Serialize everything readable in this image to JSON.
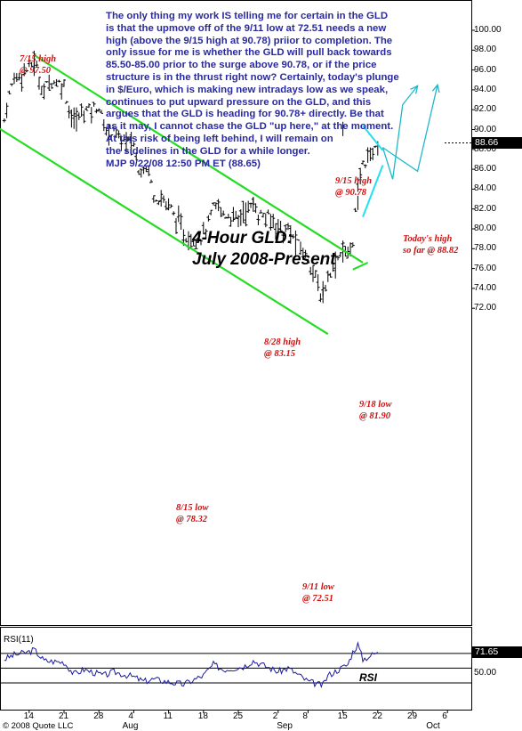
{
  "commentary": [
    "The only thing my work IS telling me for certain in the GLD",
    "is that the upmove off of the 9/11 low at 72.51 needs a new",
    "high (above the 9/15 high at 90.78) priior to completion. The",
    "only issue for me is whether the GLD will pull back towards",
    "85.50-85.00 prior to the surge above 90.78, or if the price",
    "structure is in the thrust right now?  Certainly, today's plunge",
    "in $/Euro, which is making new intradays low as we speak,",
    "continues to put upward pressure on the GLD, and this",
    "argues that the GLD is heading for 90.78+ directly. Be that",
    "as it may, I cannot chase the GLD \"up here,\" at the moment.",
    "At this risk of being left behind, I will remain on",
    "the sidelines in the GLD for a while longer.",
    "MJP 9/22/08   12:50 PM ET    (88.65)"
  ],
  "title_lines": [
    "4-Hour GLD:",
    "July 2008-Present"
  ],
  "annotations": {
    "jul15_high": [
      "7/15 high",
      "@ 97.50"
    ],
    "aug15_low": [
      "8/15 low",
      "@ 78.32"
    ],
    "aug28_high": [
      "8/28 high",
      "@ 83.15"
    ],
    "sep11_low": [
      "9/11 low",
      "@ 72.51"
    ],
    "sep15_high": [
      "9/15 high",
      "@ 90.78"
    ],
    "sep18_low": [
      "9/18 low",
      "@ 81.90"
    ],
    "today_high": [
      "Today's high",
      "so far @ 88.82"
    ]
  },
  "last_price": "88.66",
  "rsi_label": "RSI(11)",
  "rsi_value": "71.65",
  "rsi_tag": "RSI",
  "copyright": "© 2008 Quote LLC",
  "colors": {
    "commentary": "#2a2aa0",
    "annotation": "#cc1111",
    "channel": "#22dd22",
    "projection": "#20b8c8",
    "triangle": "#22e0f0",
    "bars": "#000000",
    "rsi_line": "#1a1aa0"
  },
  "chart_data": {
    "type": "bar",
    "subtype": "ohlc",
    "title": "4-Hour GLD: July 2008-Present",
    "timeframe": "4-hour",
    "y_ticks": [
      72,
      74,
      76,
      78,
      80,
      82,
      84,
      86,
      88,
      90,
      92,
      94,
      96,
      98,
      100
    ],
    "ylim": [
      69.5,
      101.5
    ],
    "x_ticks": [
      "14",
      "21",
      "28",
      "4",
      "11",
      "18",
      "25",
      "2",
      "8",
      "15",
      "22",
      "29",
      "6"
    ],
    "x_months": [
      "Aug",
      "Sep",
      "Oct"
    ],
    "x_tick_dates": [
      "2008-07-14",
      "2008-07-21",
      "2008-07-28",
      "2008-08-04",
      "2008-08-11",
      "2008-08-18",
      "2008-08-25",
      "2008-09-02",
      "2008-09-08",
      "2008-09-15",
      "2008-09-22",
      "2008-09-29",
      "2008-10-06"
    ],
    "x_month_dates": [
      "2008-08-01",
      "2008-09-01",
      "2008-10-01"
    ],
    "key_points": [
      {
        "date": "2008-07-15",
        "value": 97.5,
        "label": "7/15 high"
      },
      {
        "date": "2008-08-15",
        "value": 78.32,
        "label": "8/15 low"
      },
      {
        "date": "2008-08-28",
        "value": 83.15,
        "label": "8/28 high"
      },
      {
        "date": "2008-09-11",
        "value": 72.51,
        "label": "9/11 low"
      },
      {
        "date": "2008-09-15",
        "value": 90.78,
        "label": "9/15 high"
      },
      {
        "date": "2008-09-18",
        "value": 81.9,
        "label": "9/18 low"
      },
      {
        "date": "2008-09-22",
        "value": 88.82,
        "label": "Today's high"
      }
    ],
    "close_path": [
      [
        "2008-07-09",
        91.0
      ],
      [
        "2008-07-10",
        93.5
      ],
      [
        "2008-07-11",
        95.2
      ],
      [
        "2008-07-14",
        96.2
      ],
      [
        "2008-07-15",
        97.0
      ],
      [
        "2008-07-16",
        95.0
      ],
      [
        "2008-07-17",
        93.8
      ],
      [
        "2008-07-18",
        95.0
      ],
      [
        "2008-07-21",
        94.5
      ],
      [
        "2008-07-22",
        92.0
      ],
      [
        "2008-07-23",
        90.8
      ],
      [
        "2008-07-24",
        91.3
      ],
      [
        "2008-07-25",
        92.0
      ],
      [
        "2008-07-28",
        92.3
      ],
      [
        "2008-07-29",
        90.3
      ],
      [
        "2008-07-30",
        89.5
      ],
      [
        "2008-07-31",
        90.2
      ],
      [
        "2008-08-01",
        89.0
      ],
      [
        "2008-08-04",
        88.5
      ],
      [
        "2008-08-05",
        86.0
      ],
      [
        "2008-08-06",
        86.3
      ],
      [
        "2008-08-07",
        86.0
      ],
      [
        "2008-08-08",
        83.5
      ],
      [
        "2008-08-11",
        82.5
      ],
      [
        "2008-08-12",
        81.5
      ],
      [
        "2008-08-13",
        80.5
      ],
      [
        "2008-08-14",
        79.5
      ],
      [
        "2008-08-15",
        78.8
      ],
      [
        "2008-08-18",
        79.5
      ],
      [
        "2008-08-19",
        80.5
      ],
      [
        "2008-08-20",
        82.0
      ],
      [
        "2008-08-21",
        82.3
      ],
      [
        "2008-08-22",
        81.5
      ],
      [
        "2008-08-25",
        81.0
      ],
      [
        "2008-08-26",
        81.8
      ],
      [
        "2008-08-27",
        82.0
      ],
      [
        "2008-08-28",
        82.5
      ],
      [
        "2008-08-29",
        81.5
      ],
      [
        "2008-09-02",
        80.5
      ],
      [
        "2008-09-03",
        79.5
      ],
      [
        "2008-09-04",
        80.0
      ],
      [
        "2008-09-05",
        79.0
      ],
      [
        "2008-09-08",
        77.0
      ],
      [
        "2008-09-09",
        76.0
      ],
      [
        "2008-09-10",
        74.0
      ],
      [
        "2008-09-11",
        73.2
      ],
      [
        "2008-09-12",
        75.5
      ],
      [
        "2008-09-15",
        78.0
      ],
      [
        "2008-09-16",
        77.2
      ],
      [
        "2008-09-17",
        79.0
      ],
      [
        "2008-09-18",
        84.0
      ],
      [
        "2008-09-19",
        86.5
      ],
      [
        "2008-09-22",
        88.66
      ]
    ],
    "last": 88.66,
    "overlays": [
      {
        "type": "channel-upper",
        "from": [
          "2008-07-15",
          97.5
        ],
        "to": [
          "2008-09-19",
          76.6
        ]
      },
      {
        "type": "channel-lower",
        "from": [
          "2008-07-08",
          90.1
        ],
        "to": [
          "2008-09-12",
          69.4
        ]
      },
      {
        "type": "triangle-upper",
        "from": [
          "2008-09-19",
          90.4
        ],
        "to": [
          "2008-09-23",
          87.9
        ]
      },
      {
        "type": "triangle-lower",
        "from": [
          "2008-09-19",
          81.2
        ],
        "to": [
          "2008-09-23",
          86.4
        ]
      }
    ],
    "rsi": {
      "period": 11,
      "levels": [
        70,
        50,
        30
      ],
      "last": 71.65,
      "values": [
        [
          "2008-07-09",
          62
        ],
        [
          "2008-07-11",
          68
        ],
        [
          "2008-07-14",
          72
        ],
        [
          "2008-07-15",
          75
        ],
        [
          "2008-07-17",
          60
        ],
        [
          "2008-07-21",
          58
        ],
        [
          "2008-07-23",
          42
        ],
        [
          "2008-07-25",
          48
        ],
        [
          "2008-07-29",
          40
        ],
        [
          "2008-07-31",
          45
        ],
        [
          "2008-08-04",
          38
        ],
        [
          "2008-08-06",
          32
        ],
        [
          "2008-08-08",
          35
        ],
        [
          "2008-08-12",
          30
        ],
        [
          "2008-08-14",
          28
        ],
        [
          "2008-08-18",
          40
        ],
        [
          "2008-08-20",
          55
        ],
        [
          "2008-08-22",
          48
        ],
        [
          "2008-08-26",
          52
        ],
        [
          "2008-08-28",
          60
        ],
        [
          "2008-09-02",
          45
        ],
        [
          "2008-09-04",
          50
        ],
        [
          "2008-09-08",
          32
        ],
        [
          "2008-09-10",
          28
        ],
        [
          "2008-09-11",
          27
        ],
        [
          "2008-09-12",
          40
        ],
        [
          "2008-09-16",
          55
        ],
        [
          "2008-09-17",
          72
        ],
        [
          "2008-09-18",
          82
        ],
        [
          "2008-09-19",
          62
        ],
        [
          "2008-09-22",
          71.65
        ]
      ]
    }
  }
}
